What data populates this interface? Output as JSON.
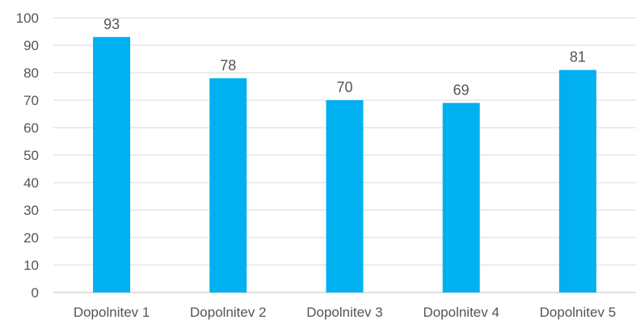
{
  "chart_data": {
    "type": "bar",
    "categories": [
      "Dopolnitev 1",
      "Dopolnitev 2",
      "Dopolnitev 3",
      "Dopolnitev 4",
      "Dopolnitev 5"
    ],
    "values": [
      93,
      78,
      70,
      69,
      81
    ],
    "data_labels": [
      "93",
      "78",
      "70",
      "69",
      "81"
    ],
    "yticks": [
      "0",
      "10",
      "20",
      "30",
      "40",
      "50",
      "60",
      "70",
      "80",
      "90",
      "100"
    ],
    "ylim": [
      0,
      100
    ],
    "grid": true,
    "bar_color": "#00b0f0"
  }
}
